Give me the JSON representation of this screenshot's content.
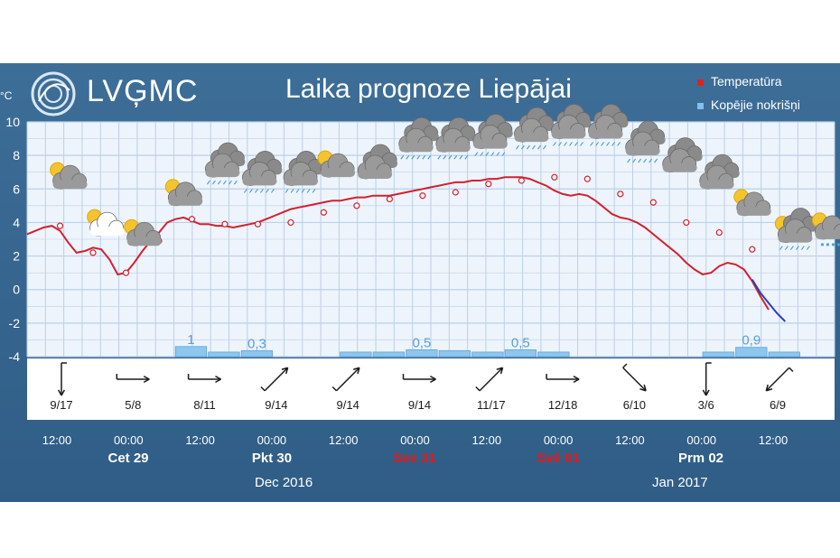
{
  "header": {
    "logo": "LVĢMC",
    "title": "Laika prognoze Liepājai",
    "unit": "°C"
  },
  "legend": {
    "temperature": "Temperatūra",
    "precipitation": "Kopējie nokrišņi"
  },
  "colors": {
    "frame": "#34638c",
    "plot_bg": "#eef4fb",
    "grid": "#b9d0ea",
    "temperature": "#d32030",
    "temperature_future": "#2a3fbf",
    "precip_bar": "#8ec6ee",
    "weekend": "#e81818"
  },
  "chart_data": {
    "type": "line",
    "ylabel": "°C",
    "ylim": [
      -4,
      10
    ],
    "yticks": [
      -4,
      -2,
      0,
      2,
      4,
      6,
      8,
      10
    ],
    "grid": true,
    "legend_position": "top-right",
    "x_ticks": [
      "12:00",
      "00:00",
      "12:00",
      "00:00",
      "12:00",
      "00:00",
      "12:00",
      "00:00",
      "12:00",
      "00:00",
      "12:00"
    ],
    "days": [
      {
        "label": "Cet 29",
        "weekend": false
      },
      {
        "label": "Pkt 30",
        "weekend": false
      },
      {
        "label": "Ses 31",
        "weekend": true
      },
      {
        "label": "Svē 01",
        "weekend": true
      },
      {
        "label": "Prm 02",
        "weekend": false
      }
    ],
    "months": [
      "Dec 2016",
      "Jan 2017"
    ],
    "series": [
      {
        "name": "Temperatūra",
        "x": [
          0,
          1,
          2,
          3,
          4,
          5,
          6,
          7,
          8,
          9,
          10,
          11,
          12,
          13,
          14,
          15,
          16,
          17,
          18,
          19,
          20,
          21,
          22,
          23,
          24,
          25,
          26,
          27,
          28,
          29,
          30,
          31,
          32,
          33,
          34,
          35,
          36,
          37,
          38,
          39,
          40,
          41,
          42,
          43,
          44,
          45,
          46,
          47,
          48,
          49,
          50,
          51,
          52,
          53,
          54,
          55,
          56,
          57,
          58,
          59,
          60,
          61,
          62,
          63,
          64,
          65,
          66,
          67,
          68,
          69,
          70,
          71,
          72,
          73,
          74,
          75,
          76,
          77,
          78,
          79,
          80,
          81,
          82,
          83,
          84,
          85,
          86,
          87,
          88,
          89,
          90
        ],
        "y": [
          3.3,
          3.5,
          3.7,
          3.8,
          3.5,
          2.8,
          2.2,
          2.3,
          2.5,
          2.4,
          1.8,
          0.9,
          1.0,
          1.6,
          2.3,
          2.9,
          3.4,
          4.0,
          4.2,
          4.3,
          4.1,
          3.9,
          3.9,
          3.8,
          3.8,
          3.7,
          3.8,
          3.9,
          4.0,
          4.2,
          4.4,
          4.6,
          4.8,
          4.9,
          5.0,
          5.1,
          5.2,
          5.3,
          5.3,
          5.4,
          5.5,
          5.5,
          5.6,
          5.6,
          5.6,
          5.7,
          5.8,
          5.9,
          6.0,
          6.1,
          6.2,
          6.3,
          6.4,
          6.4,
          6.5,
          6.5,
          6.6,
          6.6,
          6.7,
          6.7,
          6.7,
          6.6,
          6.4,
          6.2,
          5.9,
          5.7,
          5.6,
          5.7,
          5.6,
          5.3,
          4.9,
          4.5,
          4.3,
          4.2,
          4.0,
          3.7,
          3.3,
          2.9,
          2.5,
          2.1,
          1.6,
          1.2,
          0.9,
          1.0,
          1.4,
          1.6,
          1.5,
          1.2,
          0.5,
          -0.4,
          -1.2
        ]
      }
    ],
    "temperature_markers": [
      {
        "x": 4,
        "y": 3.8
      },
      {
        "x": 8,
        "y": 2.2
      },
      {
        "x": 12,
        "y": 1.0
      },
      {
        "x": 16,
        "y": 2.9
      },
      {
        "x": 20,
        "y": 4.2
      },
      {
        "x": 24,
        "y": 3.9
      },
      {
        "x": 28,
        "y": 3.9
      },
      {
        "x": 32,
        "y": 4.0
      },
      {
        "x": 36,
        "y": 4.6
      },
      {
        "x": 40,
        "y": 5.0
      },
      {
        "x": 44,
        "y": 5.4
      },
      {
        "x": 48,
        "y": 5.6
      },
      {
        "x": 52,
        "y": 5.8
      },
      {
        "x": 56,
        "y": 6.3
      },
      {
        "x": 60,
        "y": 6.5
      },
      {
        "x": 64,
        "y": 6.7
      },
      {
        "x": 68,
        "y": 6.6
      },
      {
        "x": 72,
        "y": 5.7
      },
      {
        "x": 76,
        "y": 5.2
      },
      {
        "x": 80,
        "y": 4.0
      },
      {
        "x": 84,
        "y": 3.4
      },
      {
        "x": 88,
        "y": 2.4
      },
      {
        "x": 92,
        "y": 0.9
      },
      {
        "x": 96,
        "y": 1.2
      }
    ],
    "future_segment": [
      {
        "x": 88.0,
        "y": 0.6
      },
      {
        "x": 89.0,
        "y": -0.2
      },
      {
        "x": 90.0,
        "y": -0.8
      },
      {
        "x": 91.0,
        "y": -1.4
      },
      {
        "x": 92.0,
        "y": -1.9
      }
    ],
    "precipitation": [
      {
        "x_start": 18,
        "x_end": 22,
        "label": "1"
      },
      {
        "x_start": 22,
        "x_end": 26,
        "label": ""
      },
      {
        "x_start": 26,
        "x_end": 30,
        "label": "0,3"
      },
      {
        "x_start": 38,
        "x_end": 42,
        "label": ""
      },
      {
        "x_start": 42,
        "x_end": 46,
        "label": ""
      },
      {
        "x_start": 46,
        "x_end": 50,
        "label": "0,5"
      },
      {
        "x_start": 50,
        "x_end": 54,
        "label": ""
      },
      {
        "x_start": 54,
        "x_end": 58,
        "label": ""
      },
      {
        "x_start": 58,
        "x_end": 62,
        "label": "0,5"
      },
      {
        "x_start": 62,
        "x_end": 66,
        "label": ""
      },
      {
        "x_start": 82,
        "x_end": 86,
        "label": ""
      },
      {
        "x_start": 86,
        "x_end": 90,
        "label": "0,9"
      },
      {
        "x_start": 90,
        "x_end": 94,
        "label": ""
      }
    ],
    "precip_levels": [
      0.8,
      0.12,
      0.3,
      0.12,
      0.12,
      0.4,
      0.3,
      0.12,
      0.4,
      0.12,
      0.12,
      0.7,
      0.12
    ],
    "wind": [
      {
        "label": "9/17",
        "direction": "N"
      },
      {
        "label": "5/8",
        "direction": "W"
      },
      {
        "label": "8/11",
        "direction": "W"
      },
      {
        "label": "9/14",
        "direction": "SW"
      },
      {
        "label": "9/14",
        "direction": "SW"
      },
      {
        "label": "9/14",
        "direction": "W"
      },
      {
        "label": "11/17",
        "direction": "SW"
      },
      {
        "label": "12/18",
        "direction": "W"
      },
      {
        "label": "6/10",
        "direction": "NW"
      },
      {
        "label": "3/6",
        "direction": "N"
      },
      {
        "label": "6/9",
        "direction": "NE"
      }
    ],
    "weather_icons": [
      {
        "x": 5.0,
        "y": 6.6,
        "icon": "sun-cloud-icon"
      },
      {
        "x": 9.5,
        "y": 3.8,
        "icon": "sun-cloud-white-icon"
      },
      {
        "x": 14.0,
        "y": 3.2,
        "icon": "sun-cloud-icon"
      },
      {
        "x": 19.0,
        "y": 5.6,
        "icon": "sun-cloud-icon"
      },
      {
        "x": 23.5,
        "y": 7.3,
        "icon": "cloud-drizzle-icon"
      },
      {
        "x": 28.0,
        "y": 6.8,
        "icon": "cloud-drizzle-icon"
      },
      {
        "x": 33.0,
        "y": 6.8,
        "icon": "cloud-drizzle-icon"
      },
      {
        "x": 37.5,
        "y": 7.3,
        "icon": "sun-cloud-icon"
      },
      {
        "x": 42.0,
        "y": 7.2,
        "icon": "cloud-icon"
      },
      {
        "x": 47.0,
        "y": 8.8,
        "icon": "cloud-drizzle-icon"
      },
      {
        "x": 51.5,
        "y": 8.8,
        "icon": "cloud-drizzle-icon"
      },
      {
        "x": 56.0,
        "y": 9.0,
        "icon": "cloud-drizzle-icon"
      },
      {
        "x": 61.0,
        "y": 9.4,
        "icon": "cloud-drizzle-icon"
      },
      {
        "x": 65.5,
        "y": 9.6,
        "icon": "cloud-drizzle-icon"
      },
      {
        "x": 70.0,
        "y": 9.6,
        "icon": "cloud-drizzle-icon"
      },
      {
        "x": 74.5,
        "y": 8.6,
        "icon": "cloud-drizzle-icon"
      },
      {
        "x": 79.0,
        "y": 7.6,
        "icon": "cloud-icon"
      },
      {
        "x": 83.5,
        "y": 6.6,
        "icon": "cloud-icon"
      },
      {
        "x": 88.0,
        "y": 5.0,
        "icon": "sun-cloud-icon"
      },
      {
        "x": 93.0,
        "y": 3.4,
        "icon": "sun-cloud-drizzle-icon"
      },
      {
        "x": 97.5,
        "y": 3.6,
        "icon": "sun-cloud-snow-icon"
      }
    ]
  }
}
